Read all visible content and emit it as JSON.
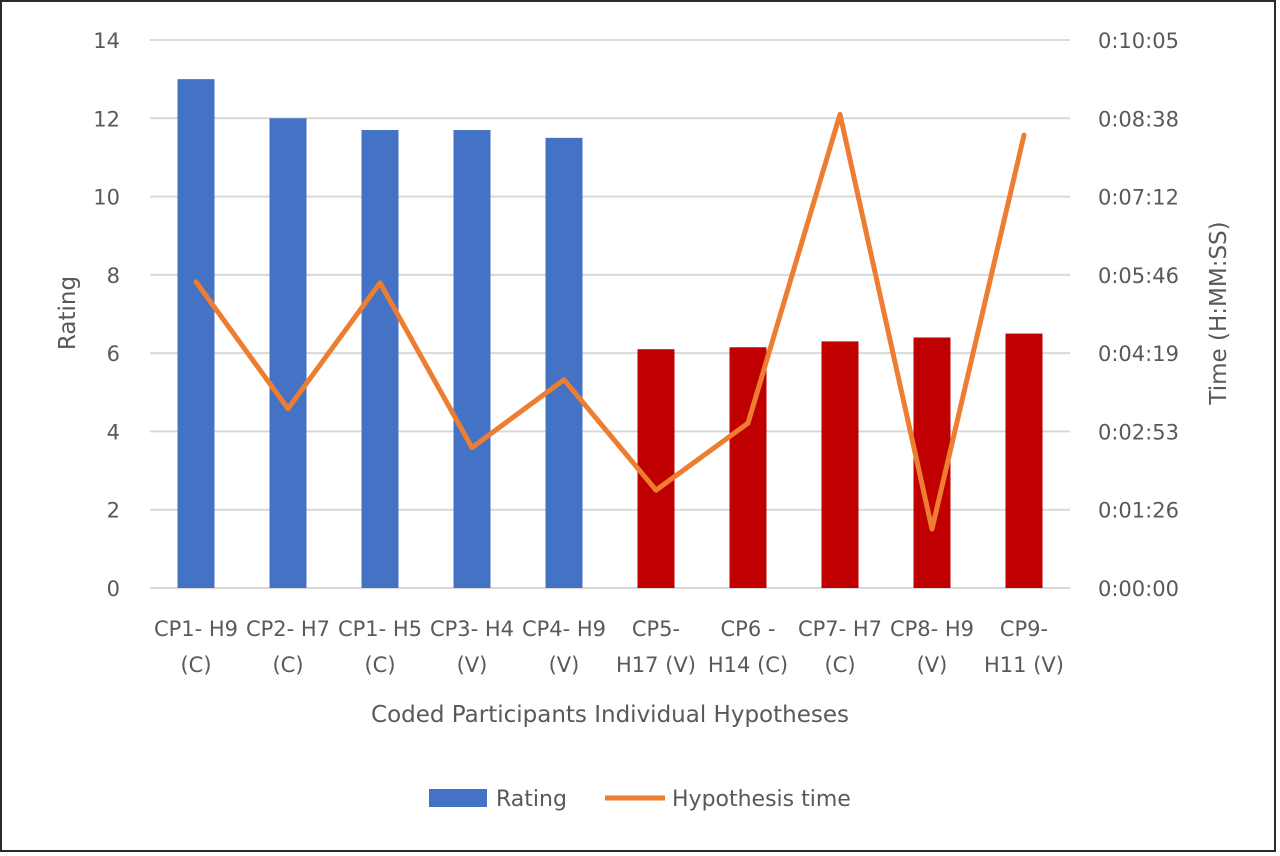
{
  "chart_data": {
    "type": "bar",
    "title": "",
    "xlabel": "Coded Participants Individual Hypotheses",
    "ylabel": "Rating",
    "y2label": "Time (H:MM:SS)",
    "ylim": [
      0,
      14
    ],
    "y_ticks": [
      "0",
      "2",
      "4",
      "6",
      "8",
      "10",
      "12",
      "14"
    ],
    "y2lim_seconds": [
      0,
      605
    ],
    "y2_ticks": [
      "0:00:00",
      "0:01:26",
      "0:02:53",
      "0:04:19",
      "0:05:46",
      "0:07:12",
      "0:08:38",
      "0:10:05"
    ],
    "grid": true,
    "legend_position": "bottom",
    "categories": [
      [
        "CP1- H9",
        "(C)"
      ],
      [
        "CP2- H7",
        "(C)"
      ],
      [
        "CP1- H5",
        "(C)"
      ],
      [
        "CP3- H4",
        "(V)"
      ],
      [
        "CP4- H9",
        "(V)"
      ],
      [
        "CP5-",
        "H17 (V)"
      ],
      [
        "CP6 -",
        "H14 (C)"
      ],
      [
        "CP7- H7",
        "(C)"
      ],
      [
        "CP8- H9",
        "(V)"
      ],
      [
        "CP9-",
        "H11 (V)"
      ]
    ],
    "series": [
      {
        "name": "Rating",
        "type": "bar",
        "axis": "left",
        "values": [
          13.0,
          12.0,
          11.7,
          11.7,
          11.5,
          6.1,
          6.15,
          6.3,
          6.4,
          6.5
        ],
        "colors": [
          "#4472c4",
          "#4472c4",
          "#4472c4",
          "#4472c4",
          "#4472c4",
          "#c00000",
          "#c00000",
          "#c00000",
          "#c00000",
          "#c00000"
        ]
      },
      {
        "name": "Hypothesis time",
        "type": "line",
        "axis": "right",
        "color": "#ed7d31",
        "values": [
          "0:05:38",
          "0:03:18",
          "0:05:37",
          "0:02:35",
          "0:03:50",
          "0:01:48",
          "0:03:02",
          "0:08:43",
          "0:01:05",
          "0:08:20"
        ]
      }
    ]
  }
}
